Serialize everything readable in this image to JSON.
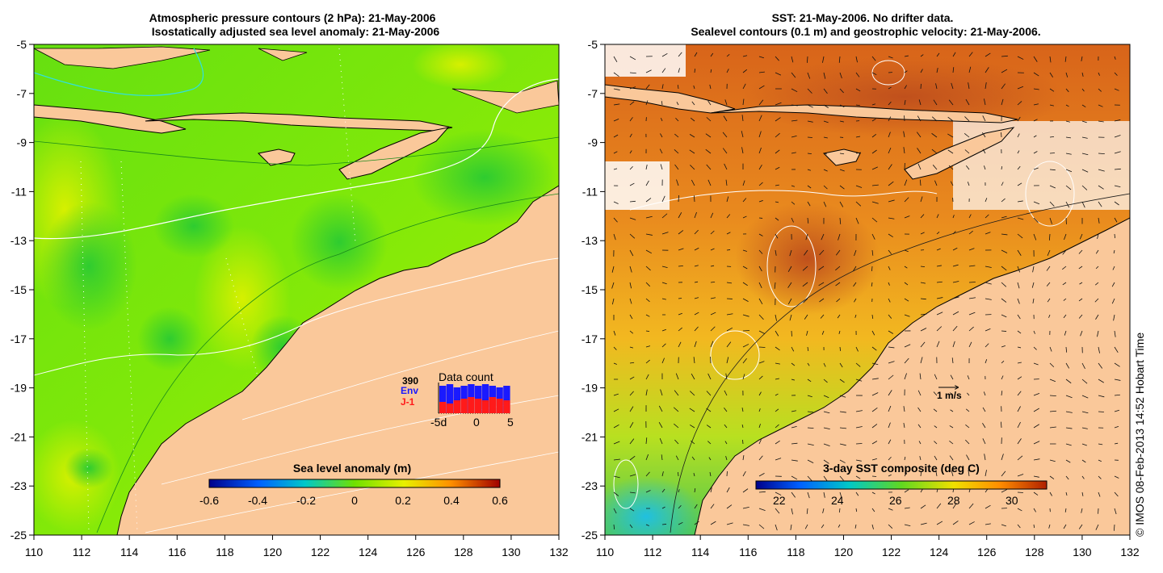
{
  "left_panel": {
    "title_line1": "Atmospheric pressure contours (2 hPa): 21-May-2006",
    "title_line2": "Isostatically adjusted sea level anomaly: 21-May-2006",
    "colorbar_title": "Sea level anomaly (m)",
    "colorbar_ticks": [
      "-0.6",
      "-0.4",
      "-0.2",
      "0",
      "0.2",
      "0.4",
      "0.6"
    ],
    "inset": {
      "total": "390",
      "title": "Data count",
      "env_label": "Env",
      "j1_label": "J-1",
      "axis_ticks": [
        "-5d",
        "0",
        "5"
      ],
      "env_color": "#1a1aff",
      "j1_color": "#ff1a1a"
    }
  },
  "right_panel": {
    "title_line1": "SST: 21-May-2006. No drifter data.",
    "title_line2": "Sealevel contours (0.1 m) and geostrophic velocity: 21-May-2006.",
    "colorbar_title": "3-day SST composite (deg C)",
    "colorbar_ticks": [
      "22",
      "24",
      "26",
      "28",
      "30"
    ],
    "scale_arrow_label": "1 m/s"
  },
  "axes": {
    "y_ticks": [
      "-5",
      "-7",
      "-9",
      "-11",
      "-13",
      "-15",
      "-17",
      "-19",
      "-21",
      "-23",
      "-25"
    ],
    "x_ticks": [
      "110",
      "112",
      "114",
      "116",
      "118",
      "120",
      "122",
      "124",
      "126",
      "128",
      "130",
      "132"
    ]
  },
  "credit": "© IMOS 08-Feb-2013 14:52 Hobart Time",
  "colors": {
    "land": "#fac89a",
    "sla_mid": "#88ee00",
    "sst_warm": "#e88a20"
  }
}
